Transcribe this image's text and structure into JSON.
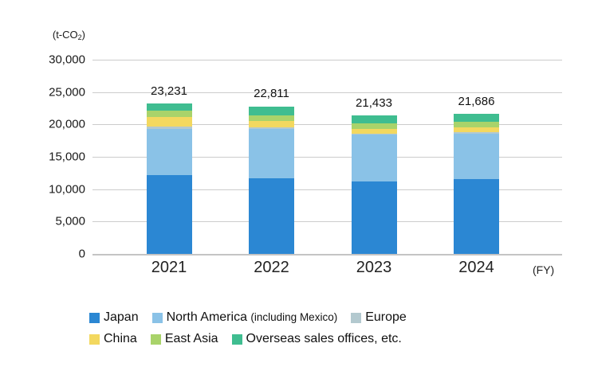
{
  "chart_data": {
    "type": "bar",
    "stacked": true,
    "y_axis_unit": {
      "prefix": "(t-CO",
      "sub": "2",
      "suffix": ")"
    },
    "fy_label": "(FY)",
    "categories": [
      "2021",
      "2022",
      "2023",
      "2024"
    ],
    "totals_display": [
      "23,231",
      "22,811",
      "21,433",
      "21,686"
    ],
    "totals": [
      23231,
      22811,
      21433,
      21686
    ],
    "y_ticks": [
      "30,000",
      "25,000",
      "20,000",
      "15,000",
      "10,000",
      "5,000",
      "0"
    ],
    "ylim": [
      0,
      30000
    ],
    "grid": "horizontal",
    "legend_position": "bottom-left",
    "series": [
      {
        "name": "Japan",
        "color": "#2b87d3",
        "values": [
          12150,
          11700,
          11150,
          11600
        ]
      },
      {
        "name": "North America (including Mexico)",
        "color": "#8ac2e7",
        "values": [
          7150,
          7600,
          7250,
          7000
        ]
      },
      {
        "name": "Europe",
        "color": "#b3c9cf",
        "values": [
          400,
          250,
          230,
          230
        ]
      },
      {
        "name": "China",
        "color": "#f3d85f",
        "values": [
          1450,
          1000,
          690,
          710
        ]
      },
      {
        "name": "East Asia",
        "color": "#a9d36a",
        "values": [
          950,
          820,
          810,
          900
        ]
      },
      {
        "name": "Overseas sales offices, etc.",
        "color": "#3fbd90",
        "values": [
          1131,
          1441,
          1303,
          1246
        ]
      }
    ],
    "legend_rows": [
      [
        {
          "label": "Japan",
          "sub": "",
          "color": "#2b87d3"
        },
        {
          "label": "North America ",
          "sub": "(including Mexico)",
          "color": "#8ac2e7"
        },
        {
          "label": "Europe",
          "sub": "",
          "color": "#b3c9cf"
        }
      ],
      [
        {
          "label": "China",
          "sub": "",
          "color": "#f3d85f"
        },
        {
          "label": "East Asia",
          "sub": "",
          "color": "#a9d36a"
        },
        {
          "label": "Overseas sales offices, etc.",
          "sub": "",
          "color": "#3fbd90"
        }
      ]
    ]
  }
}
